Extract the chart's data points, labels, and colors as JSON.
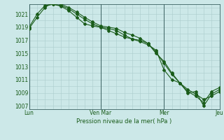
{
  "xlabel": "Pression niveau de la mer( hPa )",
  "bg_color": "#cce8e8",
  "grid_color": "#aacccc",
  "line_color": "#1a5c1a",
  "ylim": [
    1006.5,
    1022.5
  ],
  "yticks": [
    1007,
    1009,
    1011,
    1013,
    1015,
    1017,
    1019,
    1021
  ],
  "day_labels": [
    "Lun",
    "Ven Mar",
    "Mer",
    "Jeu"
  ],
  "day_positions": [
    0,
    9,
    17,
    24
  ],
  "vline_positions": [
    0,
    9,
    17,
    24
  ],
  "line1_x": [
    0,
    1,
    2,
    3,
    4,
    5,
    6,
    7,
    8,
    9,
    10,
    11,
    12,
    13,
    14,
    15,
    16,
    17,
    18,
    19,
    20,
    21,
    22,
    23,
    24
  ],
  "line1_y": [
    1019.0,
    1021.0,
    1022.3,
    1022.5,
    1022.3,
    1021.8,
    1021.0,
    1020.2,
    1019.5,
    1019.0,
    1018.8,
    1018.5,
    1017.8,
    1017.2,
    1016.8,
    1016.3,
    1015.5,
    1012.5,
    1011.0,
    1010.5,
    1009.0,
    1009.2,
    1007.0,
    1008.8,
    1009.5
  ],
  "line2_x": [
    0,
    1,
    2,
    3,
    4,
    5,
    6,
    7,
    8,
    9,
    10,
    11,
    12,
    13,
    14,
    15,
    16,
    17,
    18,
    19,
    20,
    21,
    22,
    23,
    24
  ],
  "line2_y": [
    1018.8,
    1020.5,
    1022.0,
    1022.8,
    1022.5,
    1022.0,
    1021.3,
    1020.5,
    1019.8,
    1019.2,
    1019.0,
    1018.8,
    1018.2,
    1017.8,
    1017.3,
    1016.5,
    1015.2,
    1013.5,
    1011.8,
    1010.5,
    1009.2,
    1008.5,
    1007.5,
    1009.2,
    1009.8
  ],
  "line3_x": [
    2,
    3,
    4,
    5,
    6,
    7,
    8,
    9,
    10,
    11,
    12,
    13,
    14,
    15,
    16,
    17,
    18,
    19,
    20,
    21,
    22,
    23,
    24
  ],
  "line3_y": [
    1022.2,
    1022.5,
    1022.2,
    1021.5,
    1020.5,
    1019.5,
    1019.2,
    1019.0,
    1018.5,
    1018.0,
    1017.5,
    1017.2,
    1017.0,
    1016.5,
    1015.0,
    1013.8,
    1012.0,
    1010.5,
    1009.5,
    1008.8,
    1008.0,
    1008.5,
    1009.2
  ]
}
